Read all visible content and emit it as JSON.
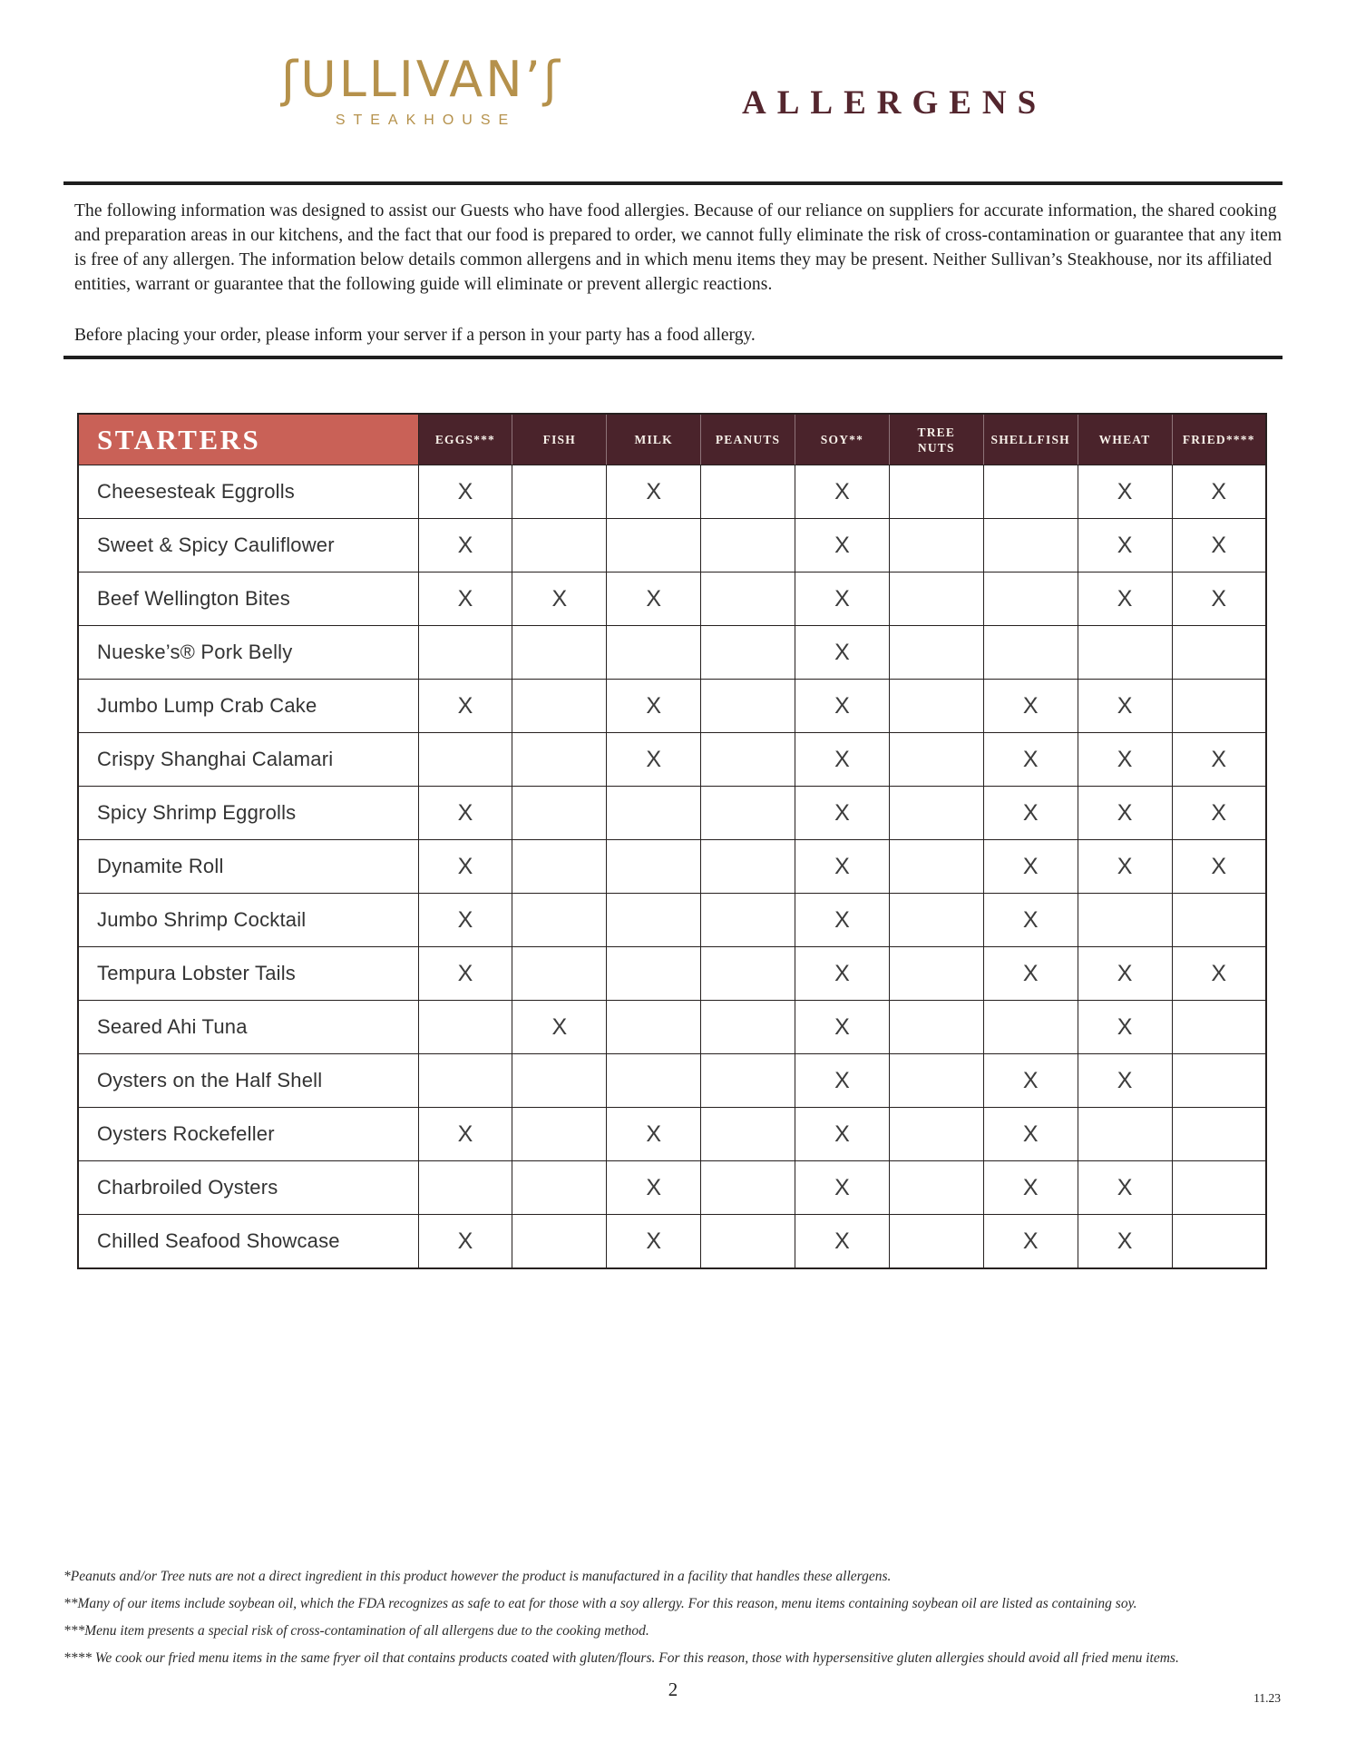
{
  "header": {
    "logo_display": "ʃULLIVAN’ʃ",
    "logo_subtext": "STEAKHOUSE",
    "title": "ALLERGENS"
  },
  "intro": {
    "paragraph1": "The following information was designed to assist our Guests who have food allergies. Because of our reliance on suppliers for accurate information, the shared cooking and preparation areas in our kitchens, and the fact that our food is prepared to order, we cannot fully eliminate the risk of cross-contamination or guarantee that any item is free of any allergen. The information below details common allergens and in which menu items they may be present. Neither Sullivan’s Steakhouse, nor its affiliated entities, warrant or guarantee that the following guide will eliminate or prevent allergic reactions.",
    "paragraph2": "Before placing your order, please inform your server if a person in your party has a food allergy."
  },
  "table": {
    "section_label": "STARTERS",
    "mark": "X",
    "columns": [
      "EGGS***",
      "FISH",
      "MILK",
      "PEANUTS",
      "SOY**",
      "TREE\nNUTS",
      "SHELLFISH",
      "WHEAT",
      "FRIED****"
    ],
    "rows": [
      {
        "item": "Cheesesteak Eggrolls",
        "marks": [
          1,
          0,
          1,
          0,
          1,
          0,
          0,
          1,
          1
        ]
      },
      {
        "item": "Sweet & Spicy Cauliflower",
        "marks": [
          1,
          0,
          0,
          0,
          1,
          0,
          0,
          1,
          1
        ]
      },
      {
        "item": "Beef Wellington Bites",
        "marks": [
          1,
          1,
          1,
          0,
          1,
          0,
          0,
          1,
          1
        ]
      },
      {
        "item": "Nueske’s® Pork Belly",
        "marks": [
          0,
          0,
          0,
          0,
          1,
          0,
          0,
          0,
          0
        ]
      },
      {
        "item": "Jumbo Lump Crab Cake",
        "marks": [
          1,
          0,
          1,
          0,
          1,
          0,
          1,
          1,
          0
        ]
      },
      {
        "item": "Crispy Shanghai Calamari",
        "marks": [
          0,
          0,
          1,
          0,
          1,
          0,
          1,
          1,
          1
        ]
      },
      {
        "item": "Spicy Shrimp Eggrolls",
        "marks": [
          1,
          0,
          0,
          0,
          1,
          0,
          1,
          1,
          1
        ]
      },
      {
        "item": "Dynamite Roll",
        "marks": [
          1,
          0,
          0,
          0,
          1,
          0,
          1,
          1,
          1
        ]
      },
      {
        "item": "Jumbo Shrimp Cocktail",
        "marks": [
          1,
          0,
          0,
          0,
          1,
          0,
          1,
          0,
          0
        ]
      },
      {
        "item": "Tempura Lobster Tails",
        "marks": [
          1,
          0,
          0,
          0,
          1,
          0,
          1,
          1,
          1
        ]
      },
      {
        "item": "Seared Ahi Tuna",
        "marks": [
          0,
          1,
          0,
          0,
          1,
          0,
          0,
          1,
          0
        ]
      },
      {
        "item": "Oysters on the Half Shell",
        "marks": [
          0,
          0,
          0,
          0,
          1,
          0,
          1,
          1,
          0
        ]
      },
      {
        "item": "Oysters Rockefeller",
        "marks": [
          1,
          0,
          1,
          0,
          1,
          0,
          1,
          0,
          0
        ]
      },
      {
        "item": "Charbroiled Oysters",
        "marks": [
          0,
          0,
          1,
          0,
          1,
          0,
          1,
          1,
          0
        ]
      },
      {
        "item": "Chilled Seafood Showcase",
        "marks": [
          1,
          0,
          1,
          0,
          1,
          0,
          1,
          1,
          0
        ]
      }
    ]
  },
  "footnotes": [
    "*Peanuts and/or Tree nuts are not a direct ingredient in this product however the product is manufactured in a facility that handles these allergens.",
    "**Many of our items include soybean oil, which the FDA recognizes as safe to eat for those with a soy allergy. For this reason, menu items containing soybean oil are listed as containing soy.",
    "***Menu item presents a special risk of cross-contamination of all allergens due to the cooking method.",
    "**** We cook our fried menu items in the same fryer oil that contains products coated with gluten/flours.  For this reason, those with hypersensitive gluten allergies should avoid all fried menu items."
  ],
  "footer": {
    "page_number": "2",
    "version": "11.23"
  },
  "colors": {
    "gold": "#b5914b",
    "title_maroon": "#54262e",
    "header_dark": "#4a232b",
    "header_salmon": "#c96157",
    "border": "#26201f"
  }
}
